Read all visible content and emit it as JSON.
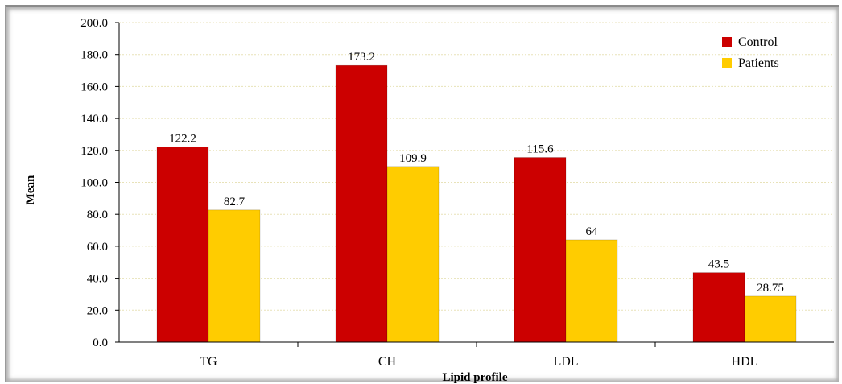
{
  "chart_data": {
    "type": "bar",
    "title": "",
    "xlabel": "Lipid profile",
    "ylabel": "Mean",
    "ylim": [
      0,
      200
    ],
    "y_ticks": [
      "0.0",
      "20.0",
      "40.0",
      "60.0",
      "80.0",
      "100.0",
      "120.0",
      "140.0",
      "160.0",
      "180.0",
      "200.0"
    ],
    "categories": [
      "TG",
      "CH",
      "LDL",
      "HDL"
    ],
    "series": [
      {
        "name": "Control",
        "color": "#cc0000",
        "values": [
          122.2,
          173.2,
          115.6,
          43.5
        ],
        "labels": [
          "122.2",
          "173.2",
          "115.6",
          "43.5"
        ]
      },
      {
        "name": "Patients",
        "color": "#ffcc00",
        "values": [
          82.7,
          109.9,
          64,
          28.75
        ],
        "labels": [
          "82.7",
          "109.9",
          "64",
          "28.75"
        ]
      }
    ],
    "grid": true,
    "legend": "top-right"
  }
}
